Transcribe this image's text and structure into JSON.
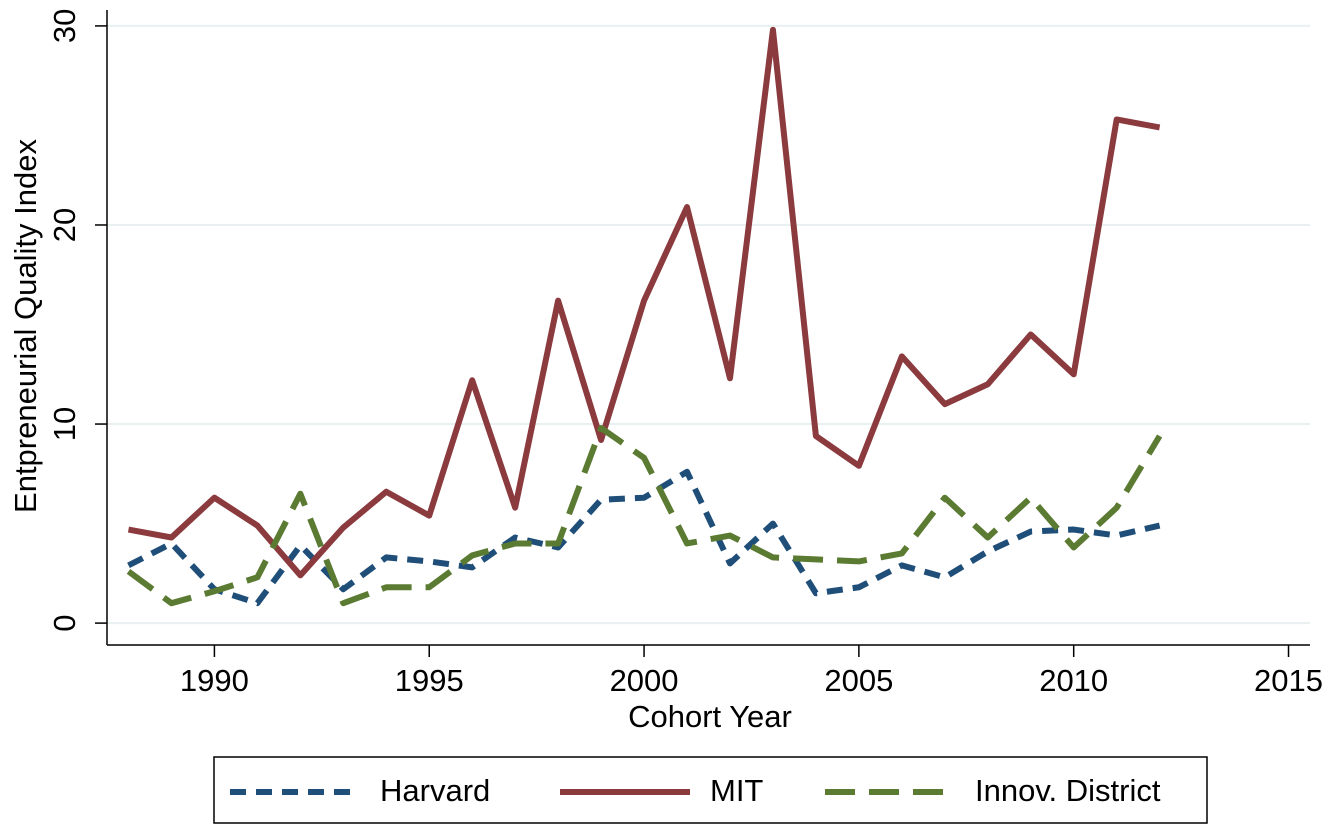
{
  "chart_data": {
    "type": "line",
    "x_label": "Cohort Year",
    "y_label": "Entpreneurial Quality Index",
    "x": [
      1988,
      1989,
      1990,
      1991,
      1992,
      1993,
      1994,
      1995,
      1996,
      1997,
      1998,
      1999,
      2000,
      2001,
      2002,
      2003,
      2004,
      2005,
      2006,
      2007,
      2008,
      2009,
      2010,
      2011,
      2012
    ],
    "series": [
      {
        "name": "Harvard",
        "color": "#1f4e79",
        "line_style": "short-dash",
        "values": [
          2.9,
          4.0,
          1.7,
          1.0,
          3.9,
          1.7,
          3.3,
          3.1,
          2.8,
          4.3,
          3.8,
          6.2,
          6.3,
          7.6,
          3.0,
          5.0,
          1.5,
          1.8,
          2.9,
          2.3,
          3.6,
          4.6,
          4.7,
          4.4,
          4.9
        ]
      },
      {
        "name": "MIT",
        "color": "#8b3a3e",
        "line_style": "solid",
        "values": [
          4.7,
          4.3,
          6.3,
          4.9,
          2.4,
          4.8,
          6.6,
          5.4,
          12.2,
          5.8,
          16.2,
          9.2,
          16.2,
          20.9,
          12.3,
          29.8,
          9.4,
          7.9,
          13.4,
          11.0,
          12.0,
          14.5,
          12.5,
          25.3,
          24.9
        ]
      },
      {
        "name": "Innov. District",
        "color": "#5b7a32",
        "line_style": "long-dash",
        "values": [
          2.6,
          1.0,
          1.6,
          2.3,
          6.5,
          1.0,
          1.8,
          1.8,
          3.4,
          4.0,
          4.0,
          9.8,
          8.3,
          4.0,
          4.4,
          3.3,
          3.2,
          3.1,
          3.5,
          6.3,
          4.3,
          6.3,
          3.8,
          5.8,
          9.4
        ]
      }
    ],
    "xlim": [
      1987.5,
      2015.5
    ],
    "xticks": [
      1990,
      1995,
      2000,
      2005,
      2010,
      2015
    ],
    "ylim": [
      -1.1,
      30.8
    ],
    "yticks": [
      0,
      10,
      20,
      30
    ],
    "grid": true,
    "legend": "bottom"
  }
}
